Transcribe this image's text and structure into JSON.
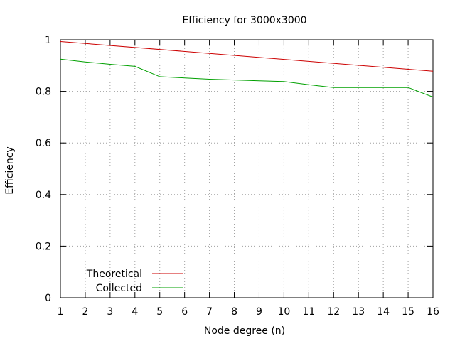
{
  "chart_data": {
    "type": "line",
    "title": "Efficiency for 3000x3000",
    "xlabel": "Node degree (n)",
    "ylabel": "Efficiency",
    "x_ticks": [
      "1",
      "2",
      "3",
      "4",
      "5",
      "6",
      "7",
      "8",
      "9",
      "10",
      "11",
      "12",
      "13",
      "14",
      "15",
      "16"
    ],
    "y_ticks": [
      "0",
      "0.2",
      "0.4",
      "0.6",
      "0.8",
      "1"
    ],
    "xlim": [
      1,
      16
    ],
    "ylim": [
      0,
      1
    ],
    "grid": true,
    "legend_position": "bottom-left",
    "series": [
      {
        "name": "Theoretical",
        "color": "#cc0000",
        "x": [
          1,
          16
        ],
        "y": [
          0.993,
          0.878
        ]
      },
      {
        "name": "Collected",
        "color": "#00a000",
        "x": [
          1,
          2,
          3,
          4,
          5,
          6,
          7,
          8,
          9,
          10,
          11,
          12,
          13,
          14,
          15,
          16
        ],
        "y": [
          0.925,
          0.914,
          0.905,
          0.897,
          0.857,
          0.852,
          0.847,
          0.844,
          0.841,
          0.838,
          0.826,
          0.815,
          0.815,
          0.815,
          0.815,
          0.778
        ]
      }
    ]
  }
}
